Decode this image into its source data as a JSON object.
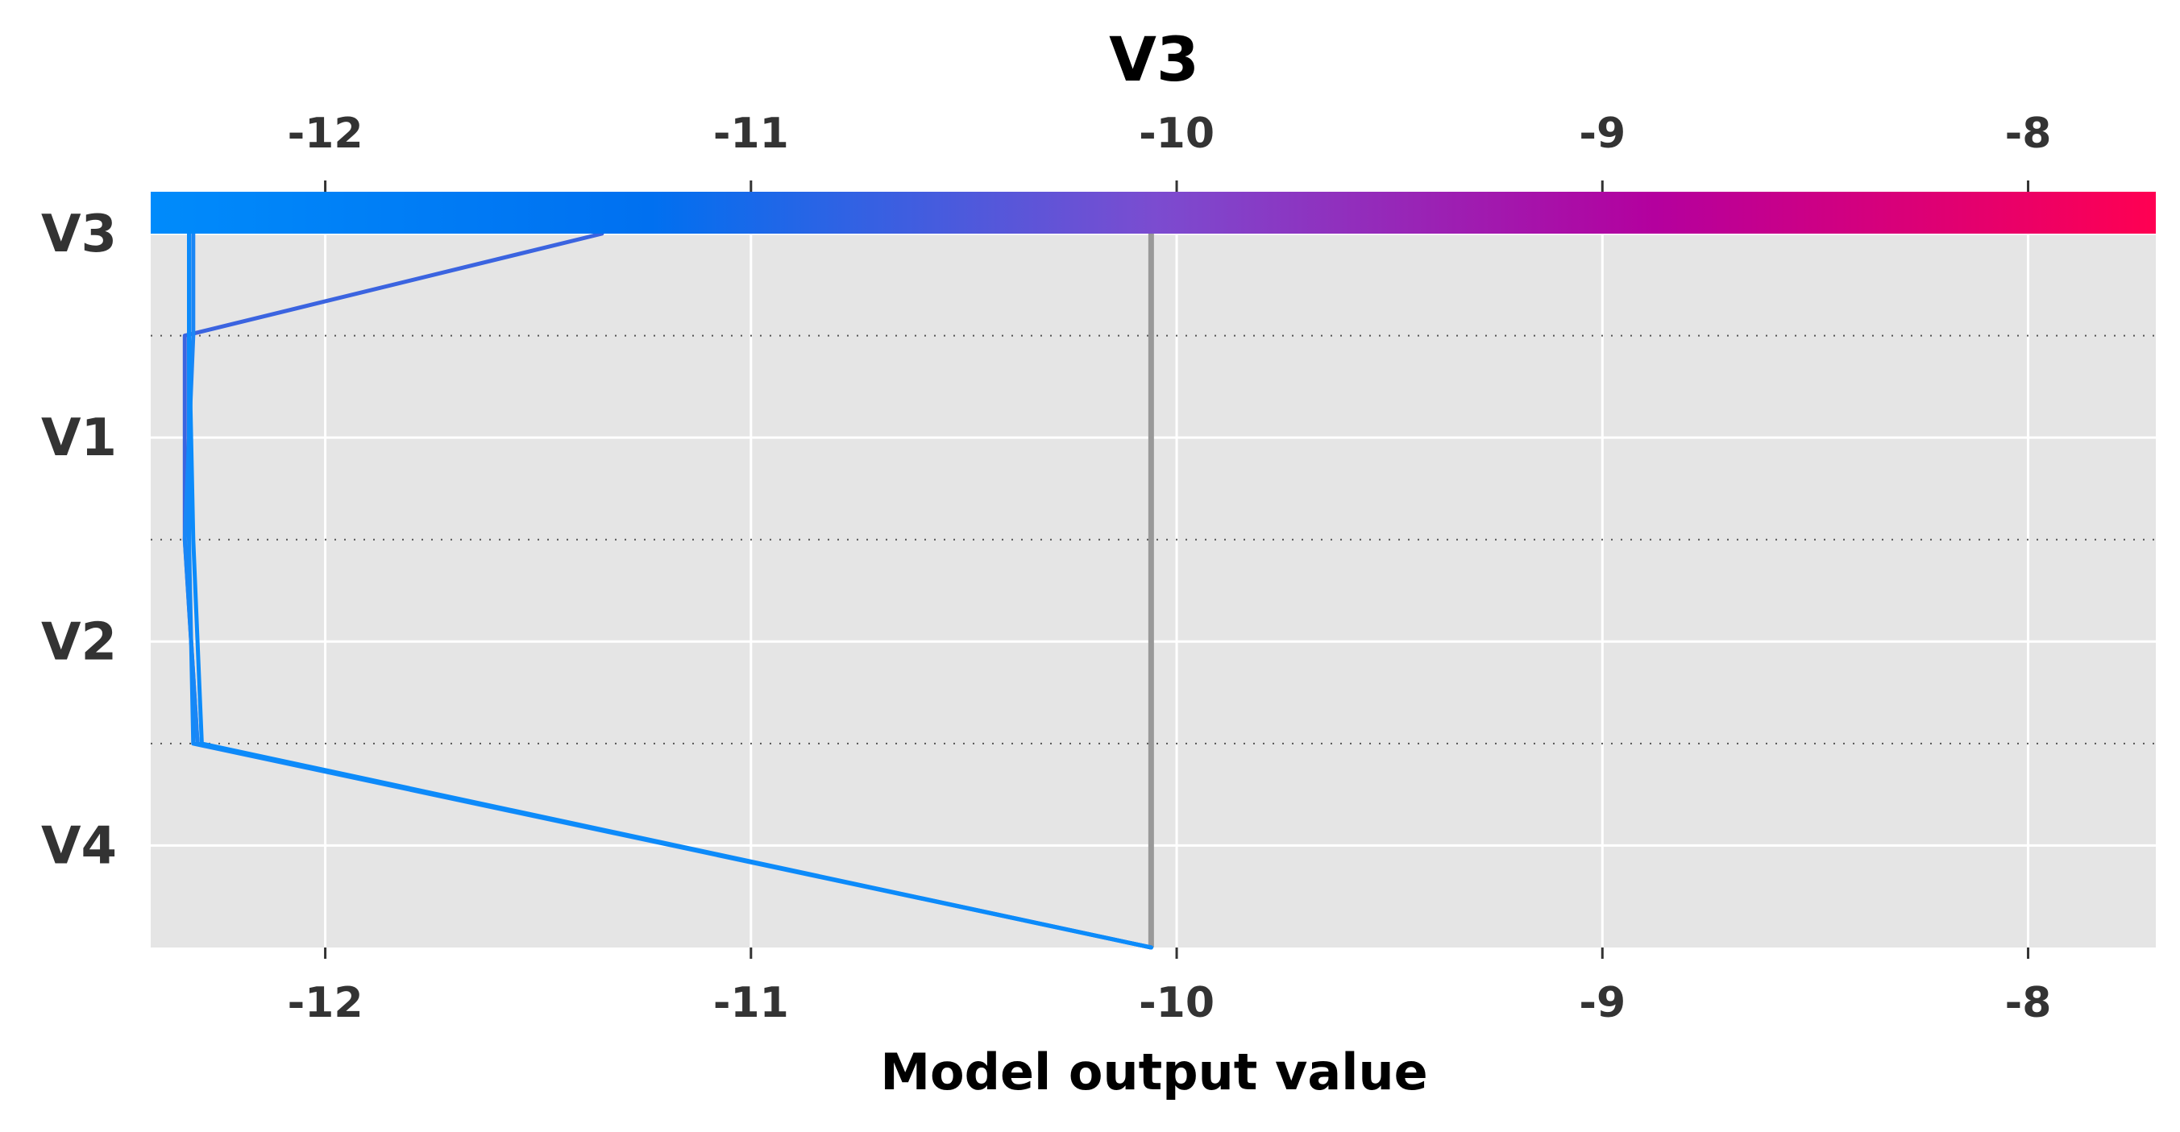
{
  "chart_data": {
    "type": "decision_plot",
    "title": "V3",
    "xlabel": "Model output value",
    "ylabel": "",
    "xlim": [
      -12.41,
      -7.7
    ],
    "x_ticks": [
      -12,
      -11,
      -10,
      -9,
      -8
    ],
    "x_tick_labels": [
      "-12",
      "-11",
      "-10",
      "-9",
      "-8"
    ],
    "features": [
      "V3",
      "V1",
      "V2",
      "V4"
    ],
    "base_value": -10.06,
    "grid": true,
    "colorbar": {
      "position": "top",
      "range": [
        -12.41,
        -7.7
      ],
      "colors": [
        "#008bfb",
        "#0070f0",
        "#7b4cd0",
        "#b4009e",
        "#ff0052"
      ]
    },
    "series": [
      {
        "values": [
          -10.06,
          -12.3,
          -12.33,
          -12.33,
          -11.35
        ],
        "color": "#3b64e0"
      },
      {
        "values": [
          -10.06,
          -12.3,
          -12.33,
          -12.31,
          -12.31
        ],
        "color": "#1a86f5"
      },
      {
        "values": [
          -10.06,
          -12.31,
          -12.32,
          -12.32,
          -12.32
        ],
        "color": "#1389f8"
      },
      {
        "values": [
          -10.06,
          -12.29,
          -12.31,
          -12.32,
          -12.32
        ],
        "color": "#0c8bfa"
      }
    ]
  },
  "colors": {
    "plot_background": "#e5e5e5",
    "grid": "#ffffff",
    "base_line": "#999999",
    "separator": "#555555"
  }
}
